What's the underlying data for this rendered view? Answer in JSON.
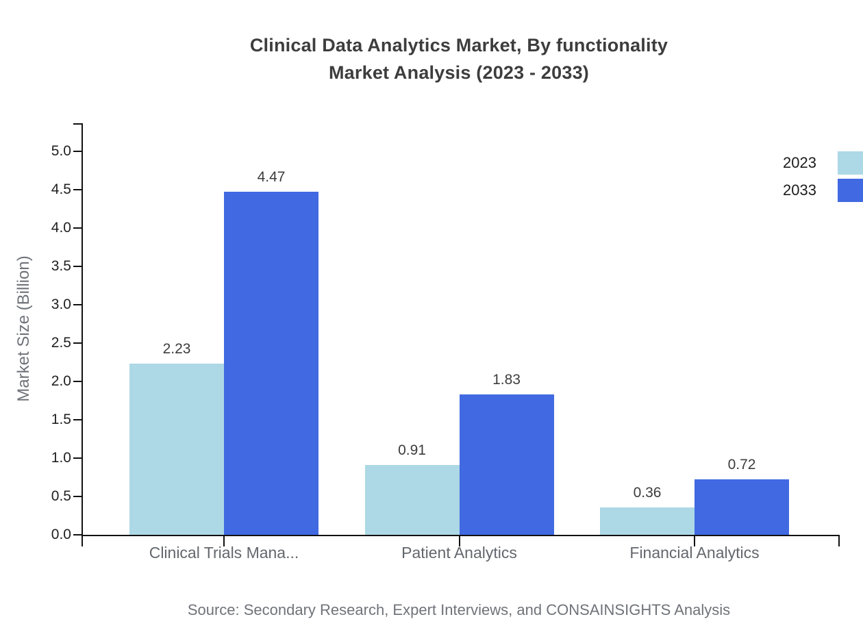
{
  "chart_data": {
    "type": "bar",
    "title": "Clinical Data Analytics Market, By functionality Market Analysis (2023 - 2033)",
    "title_line1": "Clinical Data Analytics Market, By functionality",
    "title_line2": "Market Analysis (2023 - 2033)",
    "categories": [
      "Clinical Trials Mana...",
      "Patient Analytics",
      "Financial Analytics"
    ],
    "series": [
      {
        "name": "2023",
        "color": "#ADD8E6",
        "values": [
          2.23,
          0.91,
          0.36
        ]
      },
      {
        "name": "2033",
        "color": "#4169E1",
        "values": [
          4.47,
          1.83,
          0.72
        ]
      }
    ],
    "ylabel": "Market Size (Billion)",
    "xlabel": "",
    "ylim": [
      0,
      5
    ],
    "ytick_step": 0.5,
    "grid": false,
    "legend_position": "top-right",
    "value_labels": true,
    "source": "Source: Secondary Research, Expert Interviews, and CONSAINSIGHTS Analysis"
  },
  "colors": {
    "series_2023": "#ADD8E6",
    "series_2033": "#4169E1",
    "axis": "#111111",
    "title_text": "#3d3d3d",
    "tick_label_text": "#212121",
    "category_label_text": "#63676c",
    "muted_text": "#6f7379",
    "background": "#ffffff"
  }
}
